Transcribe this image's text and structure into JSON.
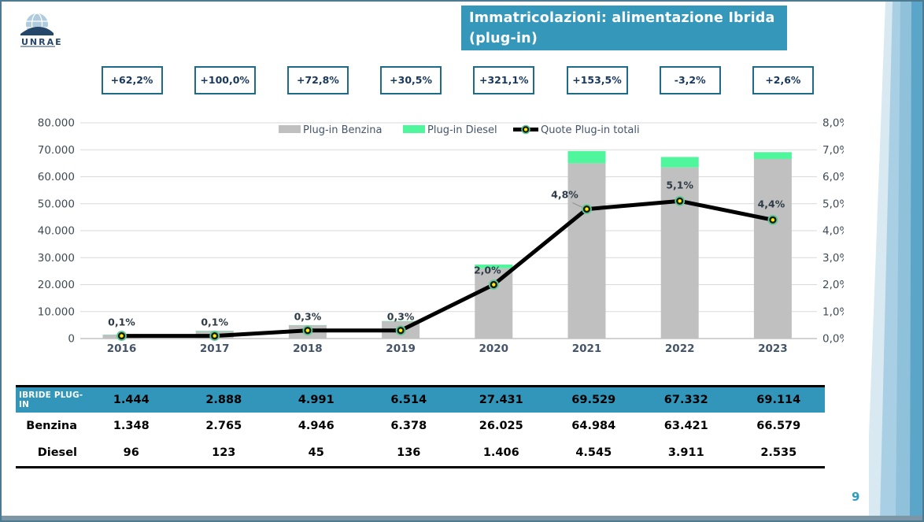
{
  "slide": {
    "title_line1": "Immatricolazioni: alimentazione Ibrida",
    "title_line2": "(plug-in)",
    "page_number": "9",
    "logo_text": "UNRAE"
  },
  "growth_boxes": [
    "+62,2%",
    "+100,0%",
    "+72,8%",
    "+30,5%",
    "+321,1%",
    "+153,5%",
    "-3,2%",
    "+2,6%"
  ],
  "chart_data": {
    "type": "bar",
    "subtype": "stacked-bars-with-line-overlay",
    "title": "Immatricolazioni: alimentazione Ibrida (plug-in)",
    "categories": [
      "2016",
      "2017",
      "2018",
      "2019",
      "2020",
      "2021",
      "2022",
      "2023"
    ],
    "series": [
      {
        "name": "Plug-in Benzina",
        "values": [
          1348,
          2765,
          4946,
          6378,
          26025,
          64984,
          63421,
          66579
        ],
        "color": "#C0C0C0"
      },
      {
        "name": "Plug-in Diesel",
        "values": [
          96,
          123,
          45,
          136,
          1406,
          4545,
          3911,
          2535
        ],
        "color": "#4FF69C"
      }
    ],
    "line_series": {
      "name": "Quote Plug-in totali",
      "axis": "right",
      "color": "#000000",
      "values": [
        0.1,
        0.1,
        0.3,
        0.3,
        2.0,
        4.8,
        5.1,
        4.4
      ],
      "labels": [
        "0,1%",
        "0,1%",
        "0,3%",
        "0,3%",
        "2,0%",
        "4,8%",
        "5,1%",
        "4,4%"
      ]
    },
    "left_axis": {
      "min": 0,
      "max": 80000,
      "ticks": [
        "80.000",
        "70.000",
        "60.000",
        "50.000",
        "40.000",
        "30.000",
        "20.000",
        "10.000",
        "0"
      ]
    },
    "right_axis": {
      "min": 0,
      "max": 8,
      "ticks": [
        "8,0%",
        "7,0%",
        "6,0%",
        "5,0%",
        "4,0%",
        "3,0%",
        "2,0%",
        "1,0%",
        "0,0%"
      ]
    },
    "legend": [
      "Plug-in Benzina",
      "Plug-in Diesel",
      "Quote Plug-in totali"
    ],
    "legend_position": "top-center",
    "grid": true
  },
  "table": {
    "rows": [
      {
        "label": "IBRIDE PLUG-IN",
        "header": true,
        "values": [
          "1.444",
          "2.888",
          "4.991",
          "6.514",
          "27.431",
          "69.529",
          "67.332",
          "69.114"
        ]
      },
      {
        "label": "Benzina",
        "header": false,
        "values": [
          "1.348",
          "2.765",
          "4.946",
          "6.378",
          "26.025",
          "64.984",
          "63.421",
          "66.579"
        ]
      },
      {
        "label": "Diesel",
        "header": false,
        "values": [
          "96",
          "123",
          "45",
          "136",
          "1.406",
          "4.545",
          "3.911",
          "2.535"
        ]
      }
    ]
  },
  "colors": {
    "accent_teal": "#3598BB",
    "table_header_teal": "#3196B9",
    "growth_box_border": "#1D6A89",
    "bar_gray": "#C0C0C0",
    "bar_green": "#4FF69C",
    "line_black": "#000000",
    "marker_ring": "#5FC993",
    "marker_center": "#FFF200",
    "navy_text": "#17375D",
    "slate_text": "#44546A"
  }
}
